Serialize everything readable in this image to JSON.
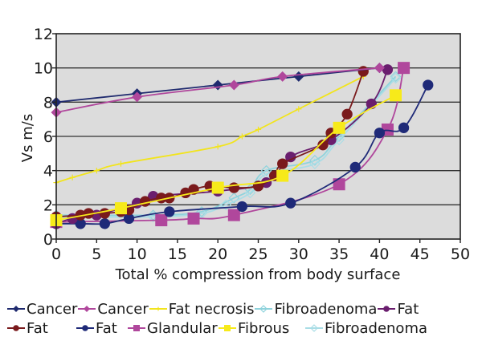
{
  "chart_data": {
    "type": "line",
    "title": "",
    "xlabel": "Total % compression from body surface",
    "ylabel": "Vs m/s",
    "xlim": [
      0,
      50
    ],
    "ylim": [
      0,
      12
    ],
    "xticks": [
      "0",
      "5",
      "10",
      "15",
      "20",
      "25",
      "30",
      "35",
      "40",
      "45",
      "50"
    ],
    "yticks": [
      "0",
      "2",
      "4",
      "6",
      "8",
      "10",
      "12"
    ],
    "grid": "horizontal",
    "legend_position": "bottom",
    "series": [
      {
        "name": "Cancer",
        "color": "#1f2a6e",
        "marker": "diamond",
        "x": [
          0,
          10,
          20,
          30,
          40
        ],
        "y": [
          8.0,
          8.5,
          9.0,
          9.5,
          10.0
        ]
      },
      {
        "name": "Cancer",
        "color": "#b0479c",
        "marker": "diamond",
        "x": [
          0,
          10,
          22,
          28,
          40
        ],
        "y": [
          7.4,
          8.3,
          9.0,
          9.5,
          10.0
        ]
      },
      {
        "name": "Fat necrosis",
        "color": "#f2e41c",
        "marker": "plus",
        "x": [
          0,
          2,
          5,
          8,
          20,
          23,
          25,
          30,
          38
        ],
        "y": [
          3.3,
          3.6,
          4.0,
          4.4,
          5.4,
          6.0,
          6.4,
          7.6,
          9.5
        ]
      },
      {
        "name": "Fibroadenoma",
        "color": "#8fd3dc",
        "marker": "diamond-open",
        "x": [
          0,
          12,
          18,
          22,
          24,
          26,
          32,
          35,
          42
        ],
        "y": [
          1.4,
          1.4,
          1.6,
          2.4,
          2.9,
          4.0,
          4.6,
          6.0,
          9.5
        ]
      },
      {
        "name": "Fat",
        "color": "#6a1e6e",
        "marker": "circle",
        "x": [
          0,
          2,
          5,
          10,
          12,
          20,
          26,
          29,
          34,
          39,
          41
        ],
        "y": [
          0.9,
          1.2,
          1.4,
          2.1,
          2.5,
          2.8,
          3.3,
          4.8,
          5.8,
          7.9,
          9.9
        ]
      },
      {
        "name": "Fat",
        "color": "#7a1a1c",
        "marker": "circle",
        "x": [
          0,
          3,
          4,
          6,
          8,
          9,
          11,
          13,
          14,
          16,
          17,
          19,
          22,
          25,
          27,
          28,
          33,
          34,
          36,
          38
        ],
        "y": [
          1.3,
          1.4,
          1.5,
          1.5,
          1.6,
          1.7,
          2.2,
          2.4,
          2.4,
          2.7,
          2.9,
          3.1,
          3.0,
          3.1,
          3.7,
          4.4,
          5.5,
          6.2,
          7.3,
          9.8
        ]
      },
      {
        "name": "Fat",
        "color": "#1f2a78",
        "marker": "circle",
        "x": [
          0,
          3,
          6,
          9,
          14,
          23,
          29,
          37,
          40,
          43,
          46
        ],
        "y": [
          0.9,
          0.9,
          0.9,
          1.2,
          1.6,
          1.9,
          2.1,
          4.2,
          6.2,
          6.5,
          9.0
        ]
      },
      {
        "name": "Glandular",
        "color": "#b0479c",
        "marker": "square",
        "x": [
          0,
          13,
          17,
          22,
          35,
          41,
          43
        ],
        "y": [
          1.0,
          1.1,
          1.2,
          1.4,
          3.2,
          6.4,
          10.0
        ]
      },
      {
        "name": "Fibrous",
        "color": "#f7ea1a",
        "marker": "square",
        "x": [
          0,
          8,
          20,
          28,
          35,
          42
        ],
        "y": [
          1.1,
          1.8,
          3.0,
          3.7,
          6.5,
          8.4
        ]
      },
      {
        "name": "Fibroadenoma",
        "color": "#a9dde6",
        "marker": "diamond-open",
        "x": [
          0,
          12,
          18,
          21,
          24,
          26,
          32,
          35,
          42
        ],
        "y": [
          1.3,
          1.3,
          1.5,
          2.0,
          2.7,
          3.8,
          4.4,
          5.8,
          9.4
        ]
      }
    ]
  }
}
